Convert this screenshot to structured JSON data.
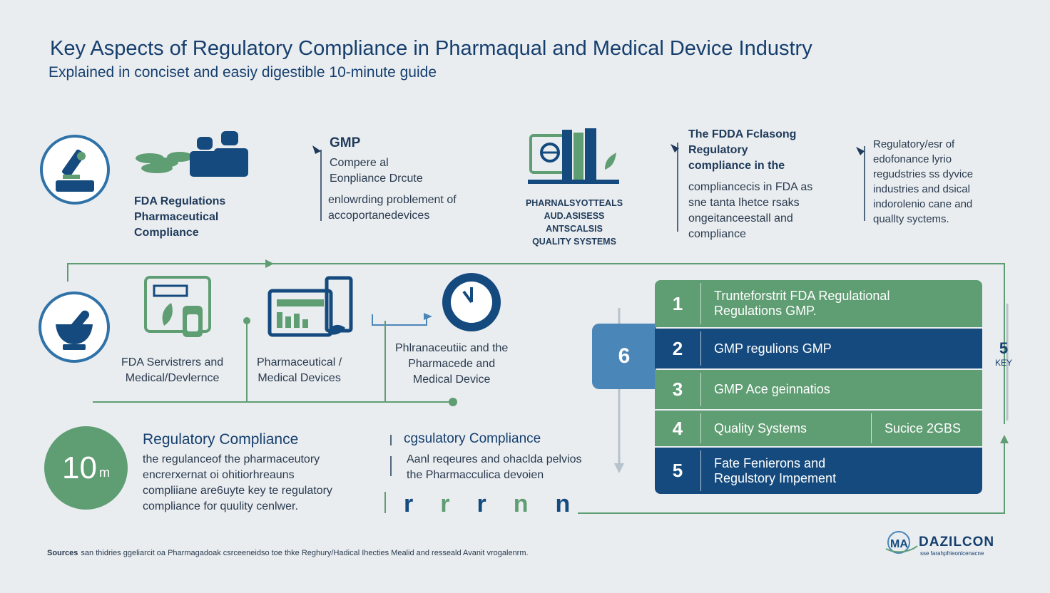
{
  "header": {
    "title": "Key Aspects of Regulatory Compliance in Pharmaqual and Medical Device Industry",
    "subtitle": "Explained in conciset and easiy digestible 10-minute guide"
  },
  "top_row": {
    "fda": [
      "FDA Regulations",
      "Pharmaceutical",
      "Compliance"
    ],
    "gmp_title": "GMP",
    "gmp_lines": [
      "Compere al",
      "Eonpliance Drcute"
    ],
    "gmp_desc": [
      "enlowrding problement of",
      "accoportanedevices"
    ],
    "pharma_lines": [
      "PHARNALSYOTTEALS",
      "AUD.ASISESS",
      "ANTSCALSIS",
      "QUALITY SYSTEMS"
    ],
    "fdpa_lines": [
      "The FDDA Fclasong",
      "Regulatory",
      "compliance in the"
    ],
    "fdpa_desc": [
      "compliancecis in FDA as",
      "sne tanta lhetce rsaks",
      "ongeitanceestall and",
      "compliance"
    ],
    "reg_lines": [
      "Regulatory/esr of",
      "edofonance lyrio",
      "regudstries ss dyvice",
      "industries and dsical",
      "indorolenio cane and",
      "quallty syctems."
    ]
  },
  "middle_row": {
    "fda_services": [
      "FDA Servistrers and",
      "Medical/Devlernce"
    ],
    "pharma_devices": [
      "Pharmaceutical /",
      "Medical Devices"
    ],
    "pharma_medical": [
      "Phlranaceutiic and the",
      "Pharmacede and",
      "Medical Device"
    ]
  },
  "bottom": {
    "badge_num": "10",
    "badge_unit": "m",
    "reg_title": "Regulatory Compliance",
    "reg_text": [
      "the regulanceof the pharmaceutory",
      "encrerxernat oi ohitiorhreauns",
      "compliiane are6uyte key te regulatory",
      "compliance for quulity cenlwer."
    ],
    "reg2_title": "cgsulatory Compliance",
    "reg2_items": [
      "Aanl reqeures and ohaclda pelvios",
      "the Pharmacculica devoien"
    ],
    "letters": [
      "r",
      "r",
      "r",
      "n",
      "n"
    ]
  },
  "table": {
    "side_number": "6",
    "rows": [
      {
        "num": "1",
        "label": [
          "Trunteforstrit FDA Regulational",
          "Regulations GMP."
        ],
        "color": "#5f9d73"
      },
      {
        "num": "2",
        "label": [
          "GMP  regulions GMP"
        ],
        "color": "#154a7e"
      },
      {
        "num": "3",
        "label": [
          "GMP Ace geinnatios"
        ],
        "color": "#5f9d73"
      },
      {
        "num": "4",
        "label": [
          "Quality Systems"
        ],
        "extra": "Sucice 2GBS",
        "color": "#5f9d73"
      },
      {
        "num": "5",
        "label": [
          "Fate Fenierons and",
          "Regulstory Impement"
        ],
        "color": "#154a7e"
      }
    ],
    "key_num": "5",
    "key_label": "KEY"
  },
  "footer": {
    "sources_label": "Sources",
    "sources_text": "san thidries ggeliarcit oa Pharmagadoak csrceeneidso toe thke Reghury/Hadical Ihecties Mealid and resseald Avanit vrogalenrm.",
    "brand_name": "DAZILCON",
    "brand_mark": "MA",
    "brand_sub": "sse farahpfrieonlcenacne"
  },
  "colors": {
    "navy": "#154a7e",
    "green": "#5f9d73",
    "blue": "#4b86b9",
    "background": "#e9edf0"
  }
}
